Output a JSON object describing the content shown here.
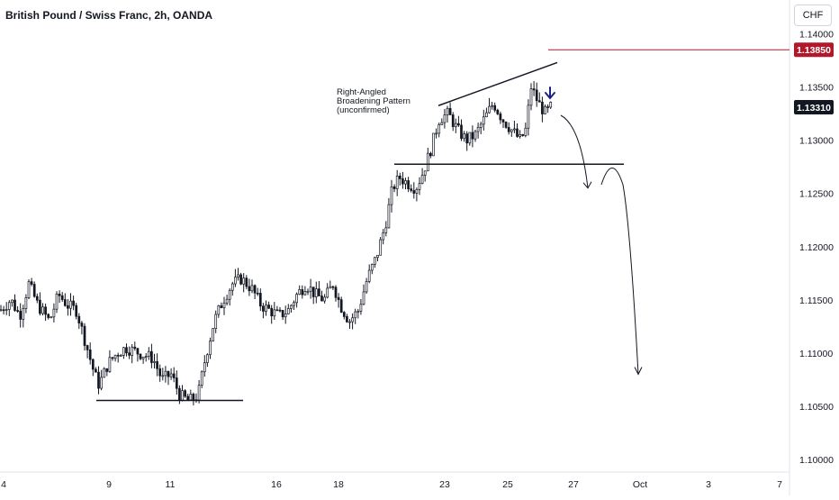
{
  "header": {
    "title": "British Pound / Swiss Franc, 2h, OANDA",
    "currency": "CHF"
  },
  "annotation": {
    "lines": [
      "Right-Angled",
      "Broadening Pattern",
      "(unconfirmed)"
    ]
  },
  "badges": {
    "resistance_label": "1.13850",
    "last_price_label": "1.13310"
  },
  "colors": {
    "up": "#26a69a",
    "down": "#131722",
    "candle": "#131722",
    "resistance_line": "#b2182b",
    "last_price_badge": "#131722",
    "arrow_marker": "#1a237e"
  },
  "chart_data": {
    "type": "candlestick",
    "symbol": "GBPCHF",
    "timeframe": "2h",
    "y_axis": {
      "range": [
        1.0995,
        1.1425
      ],
      "ticks": [
        1.1,
        1.105,
        1.11,
        1.115,
        1.12,
        1.125,
        1.13,
        1.135,
        1.14
      ],
      "tick_labels": [
        "1.10000",
        "1.10500",
        "1.11000",
        "1.11500",
        "1.12000",
        "1.12500",
        "1.13000",
        "1.13500",
        "1.14000"
      ]
    },
    "x_axis": {
      "tick_labels": [
        "4",
        "9",
        "11",
        "16",
        "18",
        "23",
        "25",
        "27",
        "Oct",
        "3",
        "7"
      ]
    },
    "price_path": [
      [
        0,
        1.114
      ],
      [
        12,
        1.115
      ],
      [
        22,
        1.1135
      ],
      [
        32,
        1.1165
      ],
      [
        42,
        1.1145
      ],
      [
        55,
        1.113
      ],
      [
        65,
        1.1155
      ],
      [
        75,
        1.1145
      ],
      [
        85,
        1.114
      ],
      [
        95,
        1.111
      ],
      [
        105,
        1.108
      ],
      [
        110,
        1.107
      ],
      [
        120,
        1.109
      ],
      [
        130,
        1.11
      ],
      [
        140,
        1.1105
      ],
      [
        155,
        1.11
      ],
      [
        170,
        1.1095
      ],
      [
        180,
        1.1075
      ],
      [
        190,
        1.108
      ],
      [
        200,
        1.106
      ],
      [
        210,
        1.1055
      ],
      [
        220,
        1.106
      ],
      [
        228,
        1.1095
      ],
      [
        238,
        1.113
      ],
      [
        248,
        1.115
      ],
      [
        258,
        1.1165
      ],
      [
        268,
        1.117
      ],
      [
        280,
        1.116
      ],
      [
        290,
        1.1145
      ],
      [
        300,
        1.114
      ],
      [
        310,
        1.1135
      ],
      [
        320,
        1.114
      ],
      [
        330,
        1.1155
      ],
      [
        340,
        1.1165
      ],
      [
        350,
        1.1155
      ],
      [
        360,
        1.115
      ],
      [
        370,
        1.1165
      ],
      [
        378,
        1.1145
      ],
      [
        388,
        1.113
      ],
      [
        398,
        1.114
      ],
      [
        408,
        1.117
      ],
      [
        418,
        1.119
      ],
      [
        428,
        1.122
      ],
      [
        436,
        1.1255
      ],
      [
        444,
        1.1265
      ],
      [
        452,
        1.126
      ],
      [
        462,
        1.1255
      ],
      [
        470,
        1.127
      ],
      [
        478,
        1.129
      ],
      [
        488,
        1.132
      ],
      [
        498,
        1.1325
      ],
      [
        508,
        1.131
      ],
      [
        518,
        1.13
      ],
      [
        528,
        1.1305
      ],
      [
        538,
        1.132
      ],
      [
        548,
        1.1335
      ],
      [
        558,
        1.132
      ],
      [
        568,
        1.131
      ],
      [
        578,
        1.13
      ],
      [
        584,
        1.131
      ],
      [
        590,
        1.135
      ],
      [
        598,
        1.1335
      ],
      [
        606,
        1.1325
      ],
      [
        612,
        1.1331
      ]
    ],
    "pattern": {
      "name": "Right-Angled Broadening Pattern (unconfirmed)",
      "support_level": 1.12775,
      "upper_trendline": [
        1.13325,
        1.1373
      ]
    },
    "support_low": 1.10555,
    "resistance_level": 1.1385,
    "last_price": 1.1331,
    "projection_targets": [
      1.1255,
      1.108
    ]
  }
}
